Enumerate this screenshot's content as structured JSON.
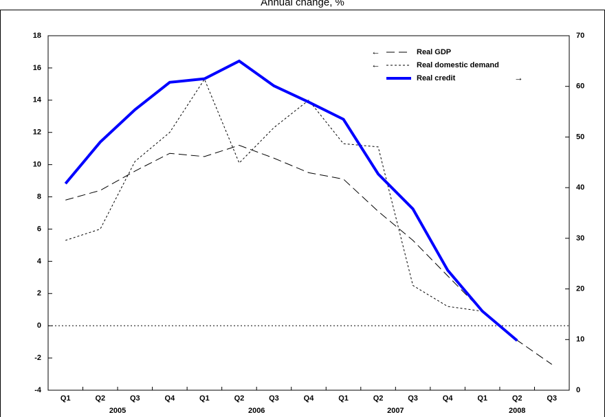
{
  "chart_data": {
    "type": "line",
    "title": "Annual change, %",
    "categories": [
      "Q1",
      "Q2",
      "Q3",
      "Q4",
      "Q1",
      "Q2",
      "Q3",
      "Q4",
      "Q1",
      "Q2",
      "Q3",
      "Q4",
      "Q1",
      "Q2",
      "Q3"
    ],
    "years": [
      "2005",
      "2006",
      "2007",
      "2008"
    ],
    "ylim": [
      -4,
      18
    ],
    "yticks": [
      -4,
      -2,
      0,
      2,
      4,
      6,
      8,
      10,
      12,
      14,
      16,
      18
    ],
    "y2lim": [
      0,
      70
    ],
    "y2ticks": [
      0,
      10,
      20,
      30,
      40,
      50,
      60,
      70
    ],
    "series": [
      {
        "name": "Real GDP",
        "color": "#000000",
        "style": "dashed",
        "values": [
          7.8,
          8.4,
          9.6,
          10.7,
          10.5,
          11.2,
          10.4,
          9.5,
          9.1,
          7.1,
          5.3,
          3.1,
          0.9,
          -0.9,
          -2.4
        ]
      },
      {
        "name": "Real domestic demand",
        "color": "#000000",
        "style": "dotted",
        "values": [
          5.3,
          6.0,
          10.2,
          12.0,
          15.3,
          10.1,
          12.3,
          14.0,
          11.3,
          11.1,
          2.5,
          1.2,
          0.9,
          null,
          null
        ]
      },
      {
        "name": "Real credit",
        "color": "#0000ff",
        "style": "solid",
        "axis": "y2",
        "values": [
          40.8,
          49.0,
          55.4,
          60.8,
          61.5,
          65.0,
          60.1,
          56.9,
          53.5,
          42.7,
          35.8,
          23.7,
          15.6,
          9.8,
          null
        ]
      }
    ]
  }
}
